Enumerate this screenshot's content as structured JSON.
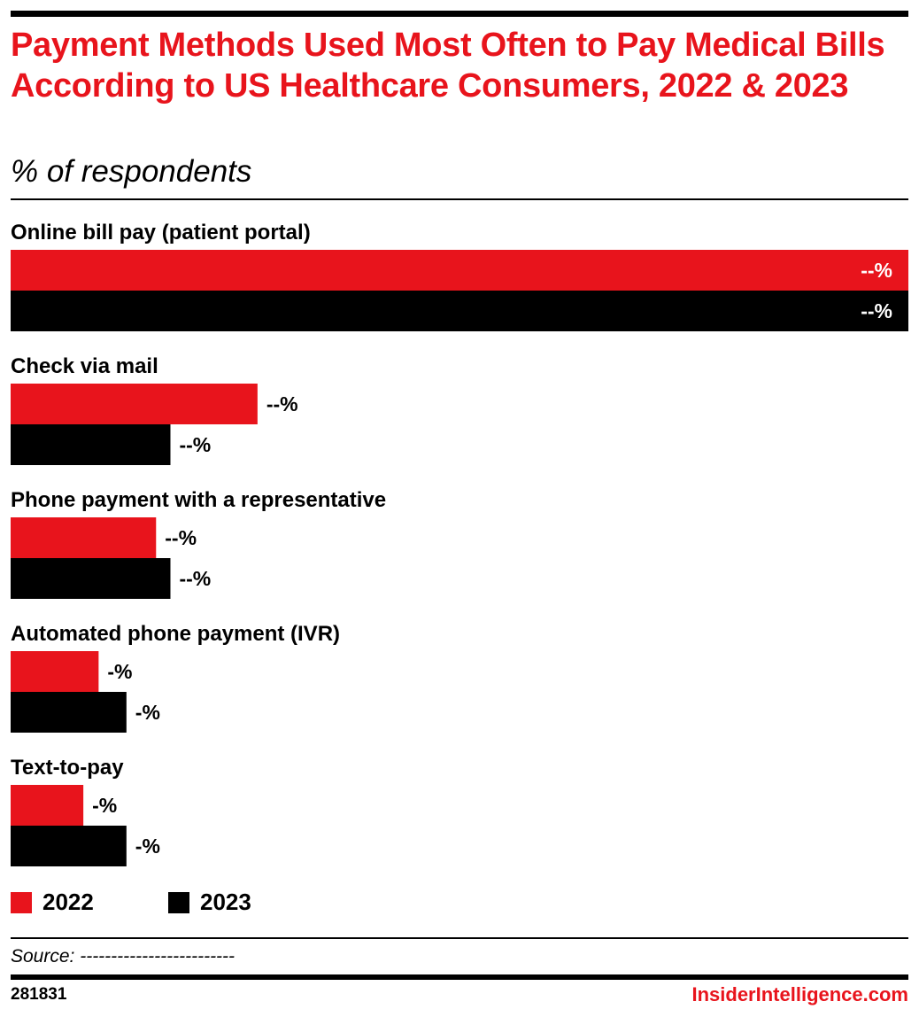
{
  "header": {
    "title": "Payment Methods Used Most Often to Pay Medical Bills According to US Healthcare Consumers, 2022 & 2023",
    "subtitle": "% of respondents"
  },
  "chart_data": {
    "type": "bar",
    "orientation": "horizontal",
    "title": "Payment Methods Used Most Often to Pay Medical Bills According to US Healthcare Consumers, 2022 & 2023",
    "subtitle": "% of respondents",
    "categories": [
      "Online bill pay (patient portal)",
      "Check via mail",
      "Phone payment with a representative",
      "Automated phone payment (IVR)",
      "Text-to-pay"
    ],
    "series": [
      {
        "name": "2022",
        "color": "#e8141c",
        "values": [
          100,
          27.5,
          16.2,
          9.8,
          8.1
        ],
        "labels": [
          "--%",
          "--%",
          "--%",
          "-%",
          "-%"
        ]
      },
      {
        "name": "2023",
        "color": "#000000",
        "values": [
          100,
          17.8,
          17.8,
          12.9,
          12.9
        ],
        "labels": [
          "--%",
          "--%",
          "--%",
          "-%",
          "-%"
        ]
      }
    ],
    "value_labels_redacted": true,
    "xlim": [
      0,
      100
    ],
    "grid": false,
    "legend_position": "bottom-left"
  },
  "legend": {
    "items": [
      {
        "label": "2022",
        "color": "#e8141c"
      },
      {
        "label": "2023",
        "color": "#000000"
      }
    ]
  },
  "footer": {
    "source": "Source: -------------------------",
    "chart_id": "281831",
    "brand": "InsiderIntelligence.com"
  }
}
